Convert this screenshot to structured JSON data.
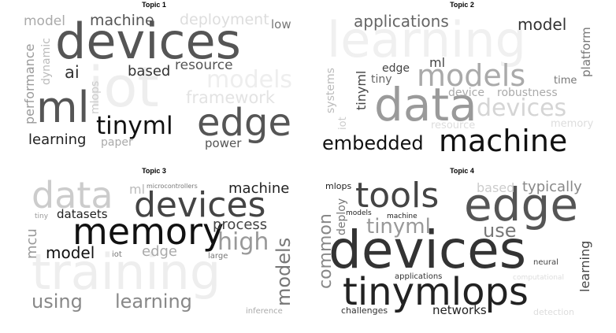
{
  "topics": [
    {
      "title": "Topic 1",
      "words": [
        {
          "text": "iot",
          "color": "#eeeeee"
        },
        {
          "text": "devices",
          "color": "#555555"
        },
        {
          "text": "ml",
          "color": "#555555"
        },
        {
          "text": "edge",
          "color": "#555555"
        },
        {
          "text": "tinyml",
          "color": "#111111"
        },
        {
          "text": "models",
          "color": "#eeeeee"
        },
        {
          "text": "framework",
          "color": "#e3e3e3"
        },
        {
          "text": "machine",
          "color": "#555555"
        },
        {
          "text": "deployment",
          "color": "#dddddd"
        },
        {
          "text": "model",
          "color": "#aaaaaa"
        },
        {
          "text": "low",
          "color": "#777777"
        },
        {
          "text": "ai",
          "color": "#333333"
        },
        {
          "text": "based",
          "color": "#333333"
        },
        {
          "text": "resource",
          "color": "#555555"
        },
        {
          "text": "performance",
          "color": "#999999"
        },
        {
          "text": "dynamic",
          "color": "#bbbbbb"
        },
        {
          "text": "mlops",
          "color": "#cccccc"
        },
        {
          "text": "learning",
          "color": "#222222"
        },
        {
          "text": "paper",
          "color": "#aaaaaa"
        },
        {
          "text": "power",
          "color": "#555555"
        }
      ]
    },
    {
      "title": "Topic 2",
      "words": [
        {
          "text": "learning",
          "color": "#f0f0f0"
        },
        {
          "text": "data",
          "color": "#9a9a9a"
        },
        {
          "text": "models",
          "color": "#aaaaaa"
        },
        {
          "text": "devices",
          "color": "#d5d5d5"
        },
        {
          "text": "machine",
          "color": "#111111"
        },
        {
          "text": "embedded",
          "color": "#111111"
        },
        {
          "text": "applications",
          "color": "#666666"
        },
        {
          "text": "model",
          "color": "#333333"
        },
        {
          "text": "platform",
          "color": "#777777"
        },
        {
          "text": "edge",
          "color": "#444444"
        },
        {
          "text": "ml",
          "color": "#444444"
        },
        {
          "text": "tiny",
          "color": "#666666"
        },
        {
          "text": "tinyml",
          "color": "#444444"
        },
        {
          "text": "systems",
          "color": "#bbbbbb"
        },
        {
          "text": "iot",
          "color": "#cccccc"
        },
        {
          "text": "device",
          "color": "#aaaaaa"
        },
        {
          "text": "robustness",
          "color": "#aaaaaa"
        },
        {
          "text": "time",
          "color": "#777777"
        },
        {
          "text": "resource",
          "color": "#dddddd"
        },
        {
          "text": "memory",
          "color": "#dddddd"
        }
      ]
    },
    {
      "title": "Topic 3",
      "words": [
        {
          "text": "training",
          "color": "#eeeeee"
        },
        {
          "text": "data",
          "color": "#cccccc"
        },
        {
          "text": "memory",
          "color": "#111111"
        },
        {
          "text": "devices",
          "color": "#444444"
        },
        {
          "text": "ml",
          "color": "#bbbbbb"
        },
        {
          "text": "microcontrollers",
          "color": "#777777"
        },
        {
          "text": "machine",
          "color": "#222222"
        },
        {
          "text": "process",
          "color": "#444444"
        },
        {
          "text": "high",
          "color": "#999999"
        },
        {
          "text": "models",
          "color": "#777777"
        },
        {
          "text": "mcu",
          "color": "#999999"
        },
        {
          "text": "tiny",
          "color": "#999999"
        },
        {
          "text": "datasets",
          "color": "#222222"
        },
        {
          "text": "model",
          "color": "#111111"
        },
        {
          "text": "iot",
          "color": "#777777"
        },
        {
          "text": "edge",
          "color": "#aaaaaa"
        },
        {
          "text": "large",
          "color": "#777777"
        },
        {
          "text": "using",
          "color": "#888888"
        },
        {
          "text": "learning",
          "color": "#888888"
        },
        {
          "text": "inference",
          "color": "#aaaaaa"
        }
      ]
    },
    {
      "title": "Topic 4",
      "words": [
        {
          "text": "devices",
          "color": "#333333"
        },
        {
          "text": "edge",
          "color": "#555555"
        },
        {
          "text": "tools",
          "color": "#444444"
        },
        {
          "text": "tinymlops",
          "color": "#222222"
        },
        {
          "text": "tinyml",
          "color": "#999999"
        },
        {
          "text": "use",
          "color": "#777777"
        },
        {
          "text": "common",
          "color": "#888888"
        },
        {
          "text": "deploy",
          "color": "#777777"
        },
        {
          "text": "mlops",
          "color": "#222222"
        },
        {
          "text": "models",
          "color": "#222222"
        },
        {
          "text": "machine",
          "color": "#222222"
        },
        {
          "text": "based",
          "color": "#cccccc"
        },
        {
          "text": "typically",
          "color": "#888888"
        },
        {
          "text": "learning",
          "color": "#444444"
        },
        {
          "text": "neural",
          "color": "#444444"
        },
        {
          "text": "computational",
          "color": "#dddddd"
        },
        {
          "text": "applications",
          "color": "#333333"
        },
        {
          "text": "challenges",
          "color": "#333333"
        },
        {
          "text": "networks",
          "color": "#222222"
        },
        {
          "text": "detection",
          "color": "#dddddd"
        }
      ]
    }
  ]
}
